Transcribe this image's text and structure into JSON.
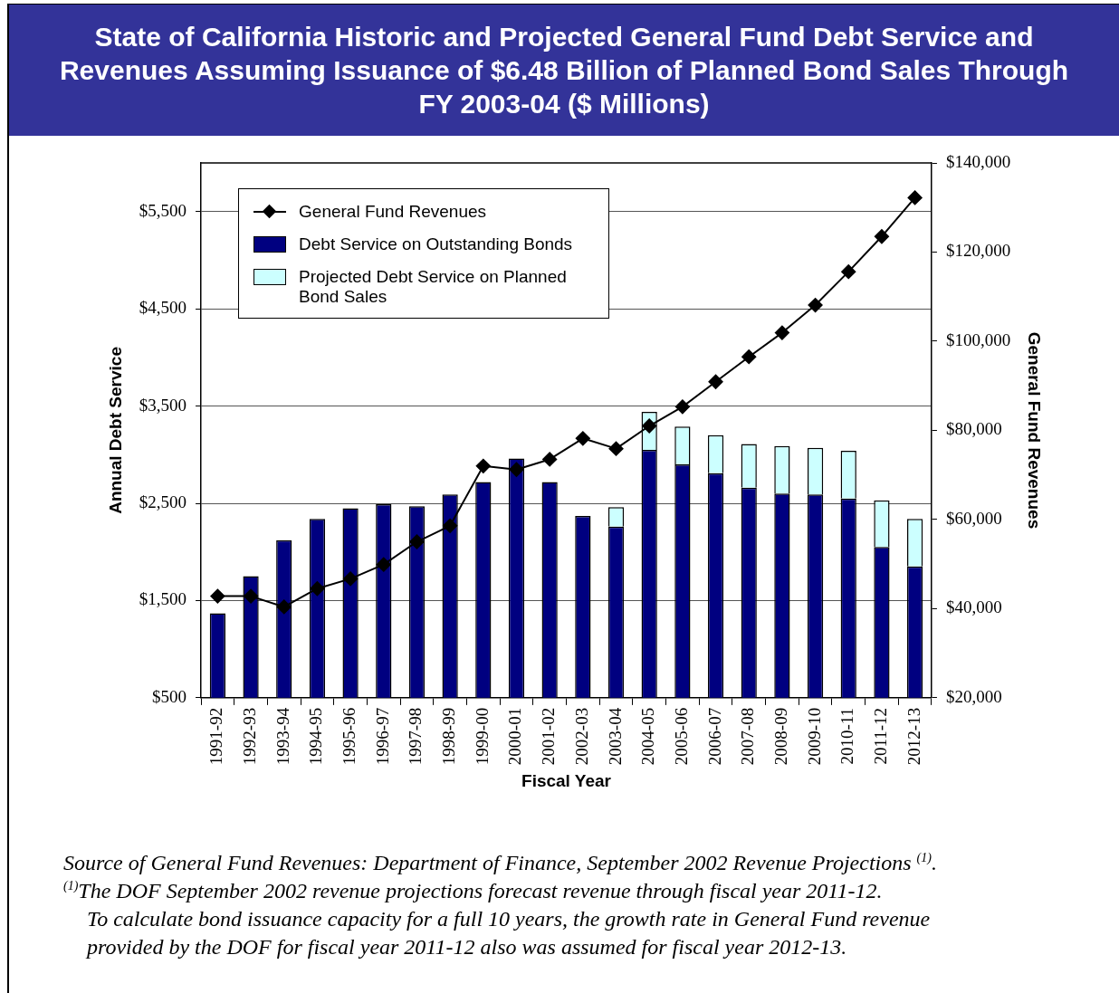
{
  "chart_data": {
    "type": "bar",
    "title": "State of California Historic and Projected General Fund Debt Service and Revenues Assuming Issuance of $6.48 Billion of Planned Bond Sales Through FY 2003-04 ($ Millions)",
    "xlabel": "Fiscal Year",
    "ylabel": "Annual Debt Service",
    "y2label": "General Fund Revenues",
    "categories": [
      "1991-92",
      "1992-93",
      "1993-94",
      "1994-95",
      "1995-96",
      "1996-97",
      "1997-98",
      "1998-99",
      "1999-00",
      "2000-01",
      "2001-02",
      "2002-03",
      "2003-04",
      "2004-05",
      "2005-06",
      "2006-07",
      "2007-08",
      "2008-09",
      "2009-10",
      "2010-11",
      "2011-12",
      "2012-13"
    ],
    "stacked": true,
    "series": [
      {
        "name": "General Fund Revenues",
        "type": "line",
        "axis": "y2",
        "color": "#000000",
        "marker": "diamond",
        "line_style": "solid",
        "values": [
          42800,
          42800,
          40400,
          44500,
          46700,
          49900,
          55000,
          58600,
          72000,
          71200,
          73500,
          78200,
          75900,
          81000,
          85300,
          90900,
          96500,
          101900,
          108100,
          115600,
          123500,
          132200
        ]
      },
      {
        "name": "Debt Service on Outstanding Bonds",
        "color": "#000080",
        "values": [
          1370,
          1750,
          2120,
          2340,
          2450,
          2490,
          2470,
          2590,
          2720,
          2960,
          2720,
          2370,
          2260,
          3050,
          2900,
          2810,
          2660,
          2600,
          2590,
          2550,
          2050,
          1850
        ]
      },
      {
        "name": "Projected Debt Service on Planned Bond Sales",
        "color": "#ccffff",
        "base": [
          null,
          null,
          null,
          null,
          null,
          null,
          null,
          null,
          null,
          null,
          null,
          null,
          2260,
          3050,
          2900,
          2810,
          2660,
          2600,
          2590,
          2550,
          2050,
          1850
        ],
        "values": [
          null,
          null,
          null,
          null,
          null,
          null,
          null,
          null,
          null,
          null,
          null,
          null,
          200,
          390,
          390,
          390,
          450,
          490,
          480,
          490,
          480,
          490
        ]
      }
    ],
    "ylim": [
      500,
      6000
    ],
    "yticks": [
      {
        "value": 500,
        "label": "$500"
      },
      {
        "value": 1500,
        "label": "$1,500"
      },
      {
        "value": 2500,
        "label": "$2,500"
      },
      {
        "value": 3500,
        "label": "$3,500"
      },
      {
        "value": 4500,
        "label": "$4,500"
      },
      {
        "value": 5500,
        "label": "$5,500"
      }
    ],
    "y2lim": [
      20000,
      140000
    ],
    "y2ticks": [
      {
        "value": 20000,
        "label": "$20,000"
      },
      {
        "value": 40000,
        "label": "$40,000"
      },
      {
        "value": 60000,
        "label": "$60,000"
      },
      {
        "value": 80000,
        "label": "$80,000"
      },
      {
        "value": 100000,
        "label": "$100,000"
      },
      {
        "value": 120000,
        "label": "$120,000"
      },
      {
        "value": 140000,
        "label": "$140,000"
      }
    ],
    "grid": "y",
    "legend": "top left",
    "annotations": [
      "Source of General Fund Revenues: Department of Finance, September 2002 Revenue Projections $^{(1)}$.",
      "$^{(1)}$The DOF September 2002 revenue projections forecast revenue through fiscal year 2011-12.",
      "To calculate bond issuance capacity for a full 10 years, the growth rate in General Fund revenue",
      "provided by the DOF for fiscal year 2011-12 also was assumed for fiscal year 2012-13."
    ]
  }
}
